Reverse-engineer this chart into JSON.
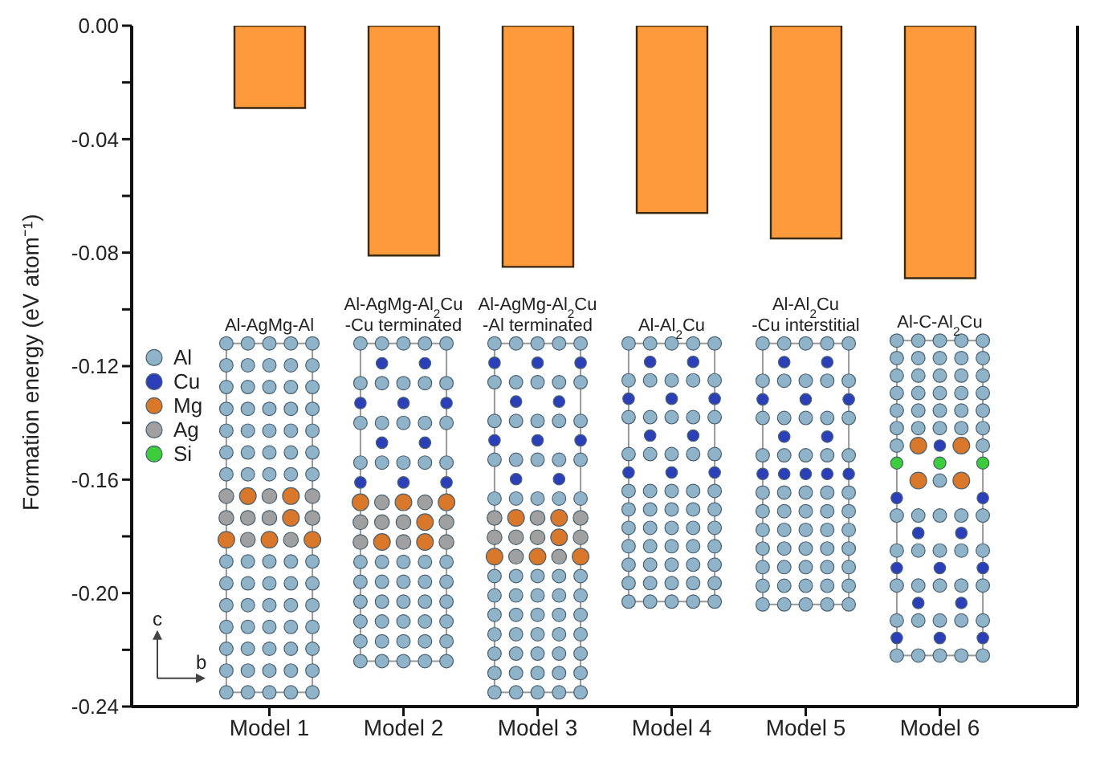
{
  "chart_data": {
    "type": "bar",
    "ylabel": "Formation energy (eV atom⁻¹)",
    "categories": [
      "Model 1",
      "Model 2",
      "Model 3",
      "Model 4",
      "Model 5",
      "Model 6"
    ],
    "values": [
      -0.029,
      -0.081,
      -0.085,
      -0.066,
      -0.075,
      -0.089
    ],
    "color": "#fd9b3c",
    "ylim": [
      -0.24,
      0
    ],
    "yticks": [
      {
        "value": 0,
        "label": "0.00"
      },
      {
        "value": -0.02,
        "label": null
      },
      {
        "value": -0.04,
        "label": "-0.04"
      },
      {
        "value": -0.06,
        "label": null
      },
      {
        "value": -0.08,
        "label": "-0.08"
      },
      {
        "value": -0.1,
        "label": null
      },
      {
        "value": -0.12,
        "label": "-0.12"
      },
      {
        "value": -0.14,
        "label": null
      },
      {
        "value": -0.16,
        "label": "-0.16"
      },
      {
        "value": -0.18,
        "label": null
      },
      {
        "value": -0.2,
        "label": "-0.20"
      },
      {
        "value": -0.22,
        "label": null
      },
      {
        "value": -0.24,
        "label": "-0.24"
      }
    ],
    "grid": false,
    "legend": false,
    "annotations": [
      "Al-AgMg-Al",
      "Al-AgMg-Al$_{2}$Cu\n-Cu terminated",
      "Al-AgMg-Al$_{2}$Cu\n-Al terminated",
      "Al-Al$_{2}$Cu",
      "Al-Al$_{2}$Cu\n-Cu interstitial",
      "Al-C-Al$_{2}$Cu",
      "Al",
      "Cu",
      "Mg",
      "Ag",
      "Si",
      "c",
      "b"
    ]
  }
}
